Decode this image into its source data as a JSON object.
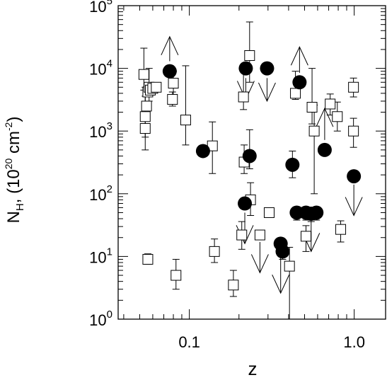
{
  "chart_data": {
    "type": "scatter",
    "title": "",
    "xlabel": "z",
    "ylabel": {
      "main": "N",
      "sub": "H",
      "rest": ", (10",
      "sup1": "20",
      "unit": " cm",
      "sup2": "-2",
      "close": ")"
    },
    "x_scale": "log",
    "y_scale": "log",
    "xlim": [
      0.037,
      1.55
    ],
    "ylim": [
      1,
      100000
    ],
    "x_ticks": [
      {
        "value": 0.1,
        "label": "0.1"
      },
      {
        "value": 1.0,
        "label": "1.0"
      }
    ],
    "y_ticks": [
      {
        "value": 1,
        "base": "10",
        "exp": "0"
      },
      {
        "value": 10,
        "base": "10",
        "exp": "1"
      },
      {
        "value": 100,
        "base": "10",
        "exp": "2"
      },
      {
        "value": 1000,
        "base": "10",
        "exp": "3"
      },
      {
        "value": 10000,
        "base": "10",
        "exp": "4"
      },
      {
        "value": 100000,
        "base": "10",
        "exp": "5"
      }
    ],
    "grid": false,
    "colors": {
      "square_fill": "#ffffff",
      "circle_fill": "#000000",
      "stroke": "#000000"
    },
    "series": [
      {
        "marker": "open-square",
        "points": [
          {
            "x": 0.053,
            "y": 8000,
            "hi": 21000,
            "lo": 4500
          },
          {
            "x": 0.054,
            "y": 1100,
            "hi": 3600,
            "lo": 500
          },
          {
            "x": 0.054,
            "y": 1700,
            "hi": 5000,
            "lo": 800
          },
          {
            "x": 0.055,
            "y": 2500
          },
          {
            "x": 0.056,
            "y": 4200
          },
          {
            "x": 0.057,
            "y": 5000,
            "hi": 10000,
            "lo": 3000
          },
          {
            "x": 0.058,
            "y": 4500
          },
          {
            "x": 0.06,
            "y": 4800
          },
          {
            "x": 0.063,
            "y": 5000
          },
          {
            "x": 0.056,
            "y": 9,
            "hi": 11,
            "lo": 7.5
          },
          {
            "x": 0.08,
            "y": 5800,
            "hi": 9000,
            "lo": 3500
          },
          {
            "x": 0.079,
            "y": 3200,
            "hi": 4200,
            "lo": 2500
          },
          {
            "x": 0.095,
            "y": 1500,
            "hi": 11000,
            "lo": 600
          },
          {
            "x": 0.083,
            "y": 5,
            "hi": 9,
            "lo": 3
          },
          {
            "x": 0.138,
            "y": 580,
            "hi": 1400,
            "lo": 210
          },
          {
            "x": 0.142,
            "y": 12,
            "hi": 19,
            "lo": 8
          },
          {
            "x": 0.185,
            "y": 3.5,
            "hi": 6,
            "lo": 2.3
          },
          {
            "x": 0.208,
            "y": 22,
            "hi": 36,
            "lo": 13
          },
          {
            "x": 0.213,
            "y": 3500,
            "hi": 9000,
            "lo": 2200
          },
          {
            "x": 0.215,
            "y": 320,
            "hi": 600,
            "lo": 210
          },
          {
            "x": 0.232,
            "y": 16000,
            "hi": 55000,
            "lo": 6000
          },
          {
            "x": 0.235,
            "y": 80,
            "hi": 150,
            "lo": 45
          },
          {
            "x": 0.268,
            "y": 22
          },
          {
            "x": 0.305,
            "y": 50,
            "hi": 58,
            "lo": 42
          },
          {
            "x": 0.405,
            "y": 7,
            "hi": 14,
            "lo": 0.1
          },
          {
            "x": 0.44,
            "y": 4000,
            "hi": 9000,
            "lo": 3200
          },
          {
            "x": 0.51,
            "y": 21,
            "hi": 31,
            "lo": 12
          },
          {
            "x": 0.555,
            "y": 2400,
            "hi": 10000,
            "lo": 1300
          },
          {
            "x": 0.572,
            "y": 1000,
            "hi": 2600,
            "lo": 100
          },
          {
            "x": 0.715,
            "y": 2700,
            "hi": 3900,
            "lo": 1800
          },
          {
            "x": 0.79,
            "y": 1700,
            "hi": 2900,
            "lo": 1000
          },
          {
            "x": 0.828,
            "y": 27,
            "hi": 37,
            "lo": 17
          },
          {
            "x": 0.99,
            "y": 5000,
            "hi": 7000,
            "lo": 3500
          },
          {
            "x": 0.99,
            "y": 1000,
            "hi": 1600,
            "lo": 550
          }
        ]
      },
      {
        "marker": "filled-circle",
        "points": [
          {
            "x": 0.076,
            "y": 9000
          },
          {
            "x": 0.121,
            "y": 480
          },
          {
            "x": 0.22,
            "y": 10000
          },
          {
            "x": 0.232,
            "y": 400,
            "hi": 1050,
            "lo": 250
          },
          {
            "x": 0.217,
            "y": 70
          },
          {
            "x": 0.296,
            "y": 10000
          },
          {
            "x": 0.358,
            "y": 16
          },
          {
            "x": 0.368,
            "y": 12,
            "hi": 16,
            "lo": 9
          },
          {
            "x": 0.422,
            "y": 290,
            "hi": 480,
            "lo": 180
          },
          {
            "x": 0.448,
            "y": 50,
            "hi": 60,
            "lo": 38
          },
          {
            "x": 0.466,
            "y": 6000
          },
          {
            "x": 0.51,
            "y": 50,
            "hi": 60,
            "lo": 38
          },
          {
            "x": 0.548,
            "y": 48,
            "hi": 58,
            "lo": 36
          },
          {
            "x": 0.59,
            "y": 50,
            "hi": 60,
            "lo": 38
          },
          {
            "x": 0.662,
            "y": 500
          },
          {
            "x": 0.995,
            "y": 190
          }
        ]
      }
    ],
    "upper_limits": [
      {
        "x": 0.22,
        "from": 7000,
        "to": 3200
      },
      {
        "x": 0.217,
        "from": 50,
        "to": 16
      },
      {
        "x": 0.296,
        "from": 7000,
        "to": 3000
      },
      {
        "x": 0.268,
        "from": 17,
        "to": 5.5
      },
      {
        "x": 0.358,
        "from": 11,
        "to": 2.6
      },
      {
        "x": 0.548,
        "from": 36,
        "to": 12
      },
      {
        "x": 0.995,
        "from": 140,
        "to": 45
      }
    ],
    "lower_limits": [
      {
        "x": 0.076,
        "from": 13000,
        "to": 32000
      },
      {
        "x": 0.466,
        "from": 8500,
        "to": 22000
      },
      {
        "x": 0.662,
        "from": 720,
        "to": 2300
      }
    ]
  }
}
